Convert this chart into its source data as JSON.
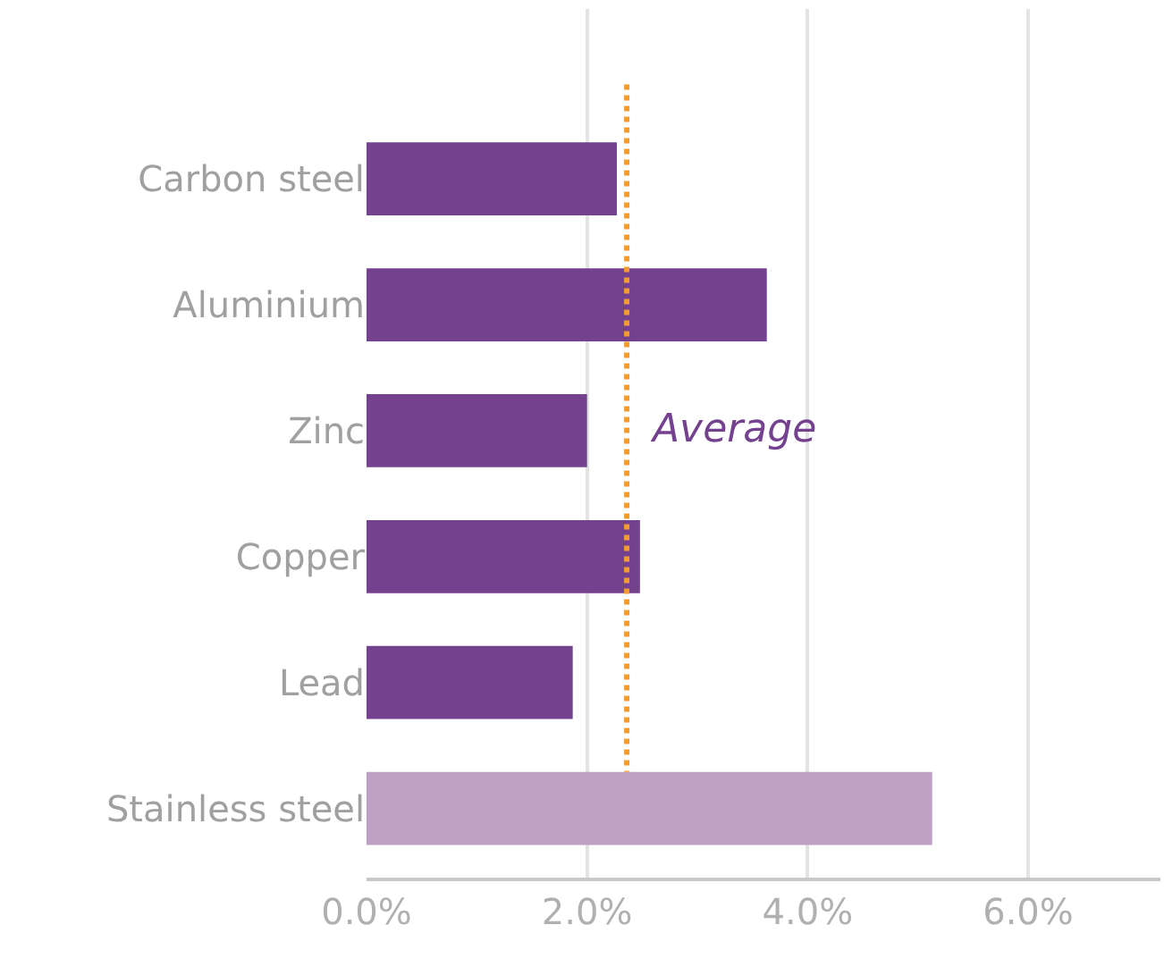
{
  "chart_data": {
    "type": "bar",
    "orientation": "horizontal",
    "categories": [
      "Carbon steel",
      "Aluminium",
      "Zinc",
      "Copper",
      "Lead",
      "Stainless steel"
    ],
    "values": [
      2.27,
      3.63,
      2.0,
      2.48,
      1.87,
      5.13
    ],
    "colors": [
      "#74418f",
      "#74418f",
      "#74418f",
      "#74418f",
      "#74418f",
      "#bea0c4"
    ],
    "xlim": [
      0,
      7.2
    ],
    "xticks": [
      {
        "value": 0,
        "label": "0.0%"
      },
      {
        "value": 2,
        "label": "2.0%"
      },
      {
        "value": 4,
        "label": "4.0%"
      },
      {
        "value": 6,
        "label": "6.0%"
      }
    ],
    "grid": "x",
    "ref_lines": [
      {
        "axis": "x",
        "value": 2.36,
        "label": "Average",
        "color": "#f39c2a",
        "line_style": "dotted"
      }
    ]
  }
}
